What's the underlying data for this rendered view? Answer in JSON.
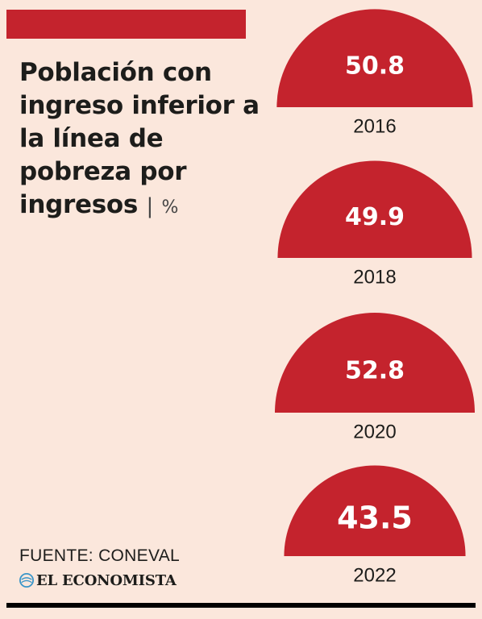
{
  "header": {
    "title": "Población con ingreso inferior a la línea de pobreza por ingresos",
    "separator": "|",
    "unit": "%"
  },
  "footer": {
    "source": "FUENTE: CONEVAL",
    "brand": "EL ECONOMISTA"
  },
  "colors": {
    "background": "#fbe7dc",
    "accent": "#c4232d",
    "text": "#1d1d1b",
    "rule": "#000000",
    "brand_icon": "#3a95c8"
  },
  "icons": {
    "brand": "globe-icon"
  },
  "chart_data": {
    "type": "semicircle",
    "title": "Población con ingreso inferior a la línea de pobreza por ingresos",
    "unit": "%",
    "categories": [
      "2016",
      "2018",
      "2020",
      "2022"
    ],
    "values": [
      50.8,
      49.9,
      52.8,
      43.5
    ],
    "value_labels": [
      "50.8",
      "49.9",
      "52.8",
      "43.5"
    ],
    "encoding": "semicircle area proportional to value"
  }
}
